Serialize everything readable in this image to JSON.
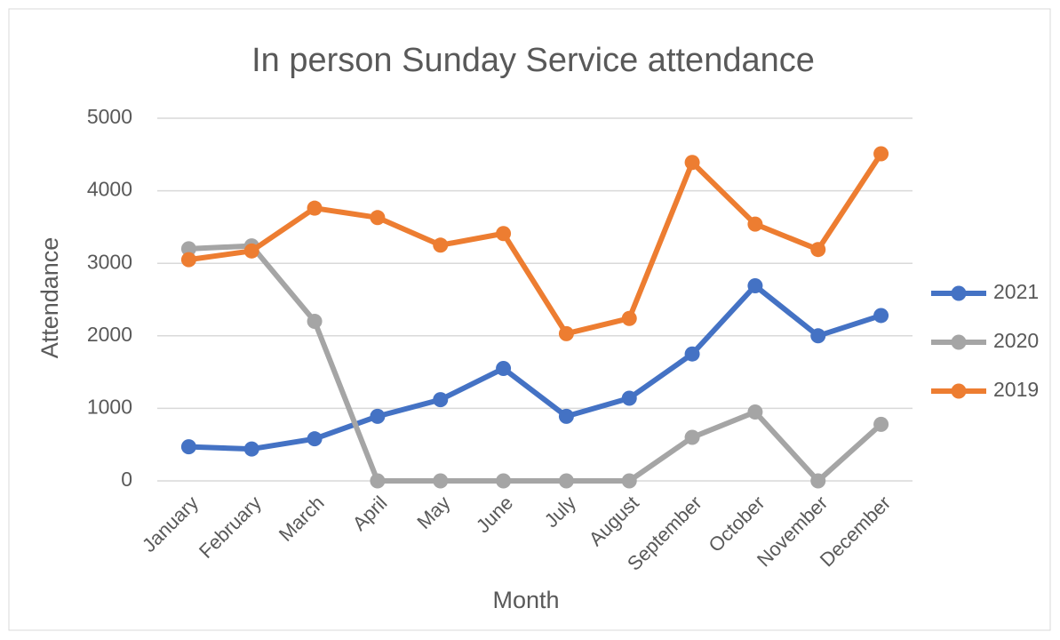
{
  "chart_data": {
    "type": "line",
    "title": "In person Sunday Service attendance",
    "x_label": "Month",
    "y_label": "Attendance",
    "categories": [
      "January",
      "February",
      "March",
      "April",
      "May",
      "June",
      "July",
      "August",
      "September",
      "October",
      "November",
      "December"
    ],
    "series": [
      {
        "name": "2021",
        "color": "#4472c4",
        "values": [
          470,
          440,
          580,
          890,
          1120,
          1550,
          890,
          1140,
          1750,
          2690,
          2000,
          2280
        ]
      },
      {
        "name": "2020",
        "color": "#a5a5a5",
        "values": [
          3200,
          3240,
          2200,
          0,
          0,
          0,
          0,
          0,
          600,
          950,
          0,
          780
        ]
      },
      {
        "name": "2019",
        "color": "#ed7d31",
        "values": [
          3050,
          3170,
          3760,
          3630,
          3250,
          3410,
          2030,
          2240,
          4390,
          3540,
          3190,
          4510
        ]
      }
    ],
    "ylim": [
      0,
      5000
    ],
    "yticks": [
      0,
      1000,
      2000,
      3000,
      4000,
      5000
    ],
    "grid": true,
    "legend": "right"
  }
}
